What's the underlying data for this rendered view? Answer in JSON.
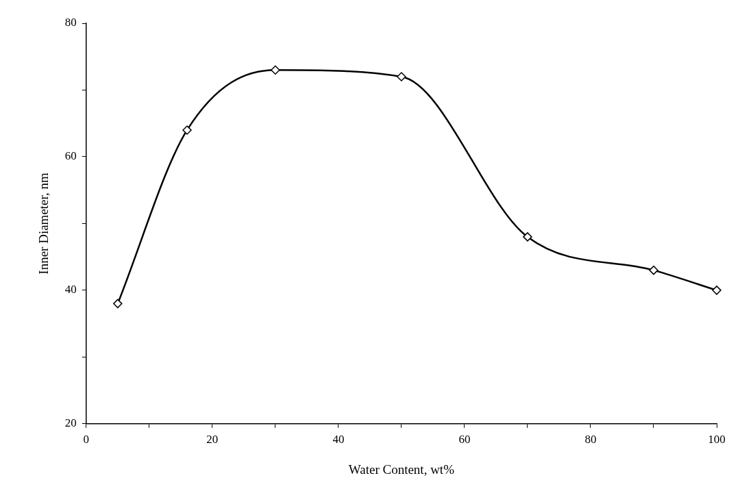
{
  "chart_data": {
    "type": "line",
    "xlabel": "Water Content, wt%",
    "ylabel": "Inner Diameter, nm",
    "x": [
      5,
      16,
      30,
      50,
      70,
      90,
      100
    ],
    "series": [
      {
        "color": "#000000",
        "values": [
          38,
          64,
          73,
          72,
          48,
          43,
          40
        ]
      }
    ],
    "xlim": [
      0,
      100
    ],
    "xticks": [
      0,
      {
        "value": 10,
        "label": null
      },
      20,
      {
        "value": 30,
        "label": null
      },
      40,
      {
        "value": 50,
        "label": null
      },
      60,
      {
        "value": 70,
        "label": null
      },
      80,
      {
        "value": 90,
        "label": null
      },
      100
    ],
    "ylim": [
      20,
      80
    ],
    "yticks": [
      20,
      {
        "value": 30,
        "label": null
      },
      40,
      {
        "value": 50,
        "label": null
      },
      60,
      {
        "value": 70,
        "label": null
      },
      80
    ],
    "grid": false,
    "legend": false,
    "marker": "diamond",
    "line_style": "solid"
  }
}
